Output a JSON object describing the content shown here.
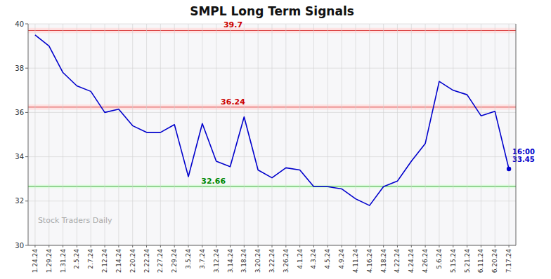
{
  "chart_data": {
    "type": "line",
    "title": "SMPL Long Term Signals",
    "watermark": "Stock Traders Daily",
    "categories": [
      "1.24.24",
      "1.29.24",
      "1.31.24",
      "2.5.24",
      "2.7.24",
      "2.12.24",
      "2.14.24",
      "2.20.24",
      "2.22.24",
      "2.27.24",
      "2.29.24",
      "3.5.24",
      "3.7.24",
      "3.12.24",
      "3.14.24",
      "3.18.24",
      "3.20.24",
      "3.22.24",
      "3.26.24",
      "4.1.24",
      "4.3.24",
      "4.5.24",
      "4.9.24",
      "4.11.24",
      "4.16.24",
      "4.18.24",
      "4.22.24",
      "4.24.24",
      "4.26.24",
      "5.6.24",
      "5.15.24",
      "5.21.24",
      "6.11.24",
      "6.20.24",
      "7.17.24"
    ],
    "values": [
      39.5,
      39.0,
      37.8,
      37.2,
      36.95,
      36.0,
      36.15,
      35.4,
      35.1,
      35.1,
      35.45,
      33.1,
      35.5,
      33.8,
      33.55,
      35.8,
      33.4,
      33.05,
      33.5,
      33.4,
      32.65,
      32.65,
      32.55,
      32.1,
      31.8,
      32.65,
      32.9,
      33.8,
      34.6,
      37.4,
      37.0,
      36.8,
      35.85,
      36.05,
      33.45
    ],
    "color": "#0000cc",
    "reference_lines": [
      {
        "value": 39.7,
        "band": 0.12,
        "label": "39.7",
        "color": "#dd4444",
        "fill": "#ffdddd",
        "label_color": "#cc0000"
      },
      {
        "value": 36.24,
        "band": 0.12,
        "label": "36.24",
        "color": "#dd4444",
        "fill": "#ffdddd",
        "label_color": "#cc0000"
      },
      {
        "value": 32.66,
        "band": 0.08,
        "label": "32.66",
        "color": "#44aa44",
        "fill": "#ddffdd",
        "label_color": "#008800"
      }
    ],
    "annotations": [
      {
        "category": "7.17.24",
        "label": "16:00",
        "value": 33.45
      }
    ],
    "ylim": [
      30,
      40
    ],
    "yticks": [
      30,
      32,
      34,
      36,
      38,
      40
    ],
    "grid": true
  }
}
